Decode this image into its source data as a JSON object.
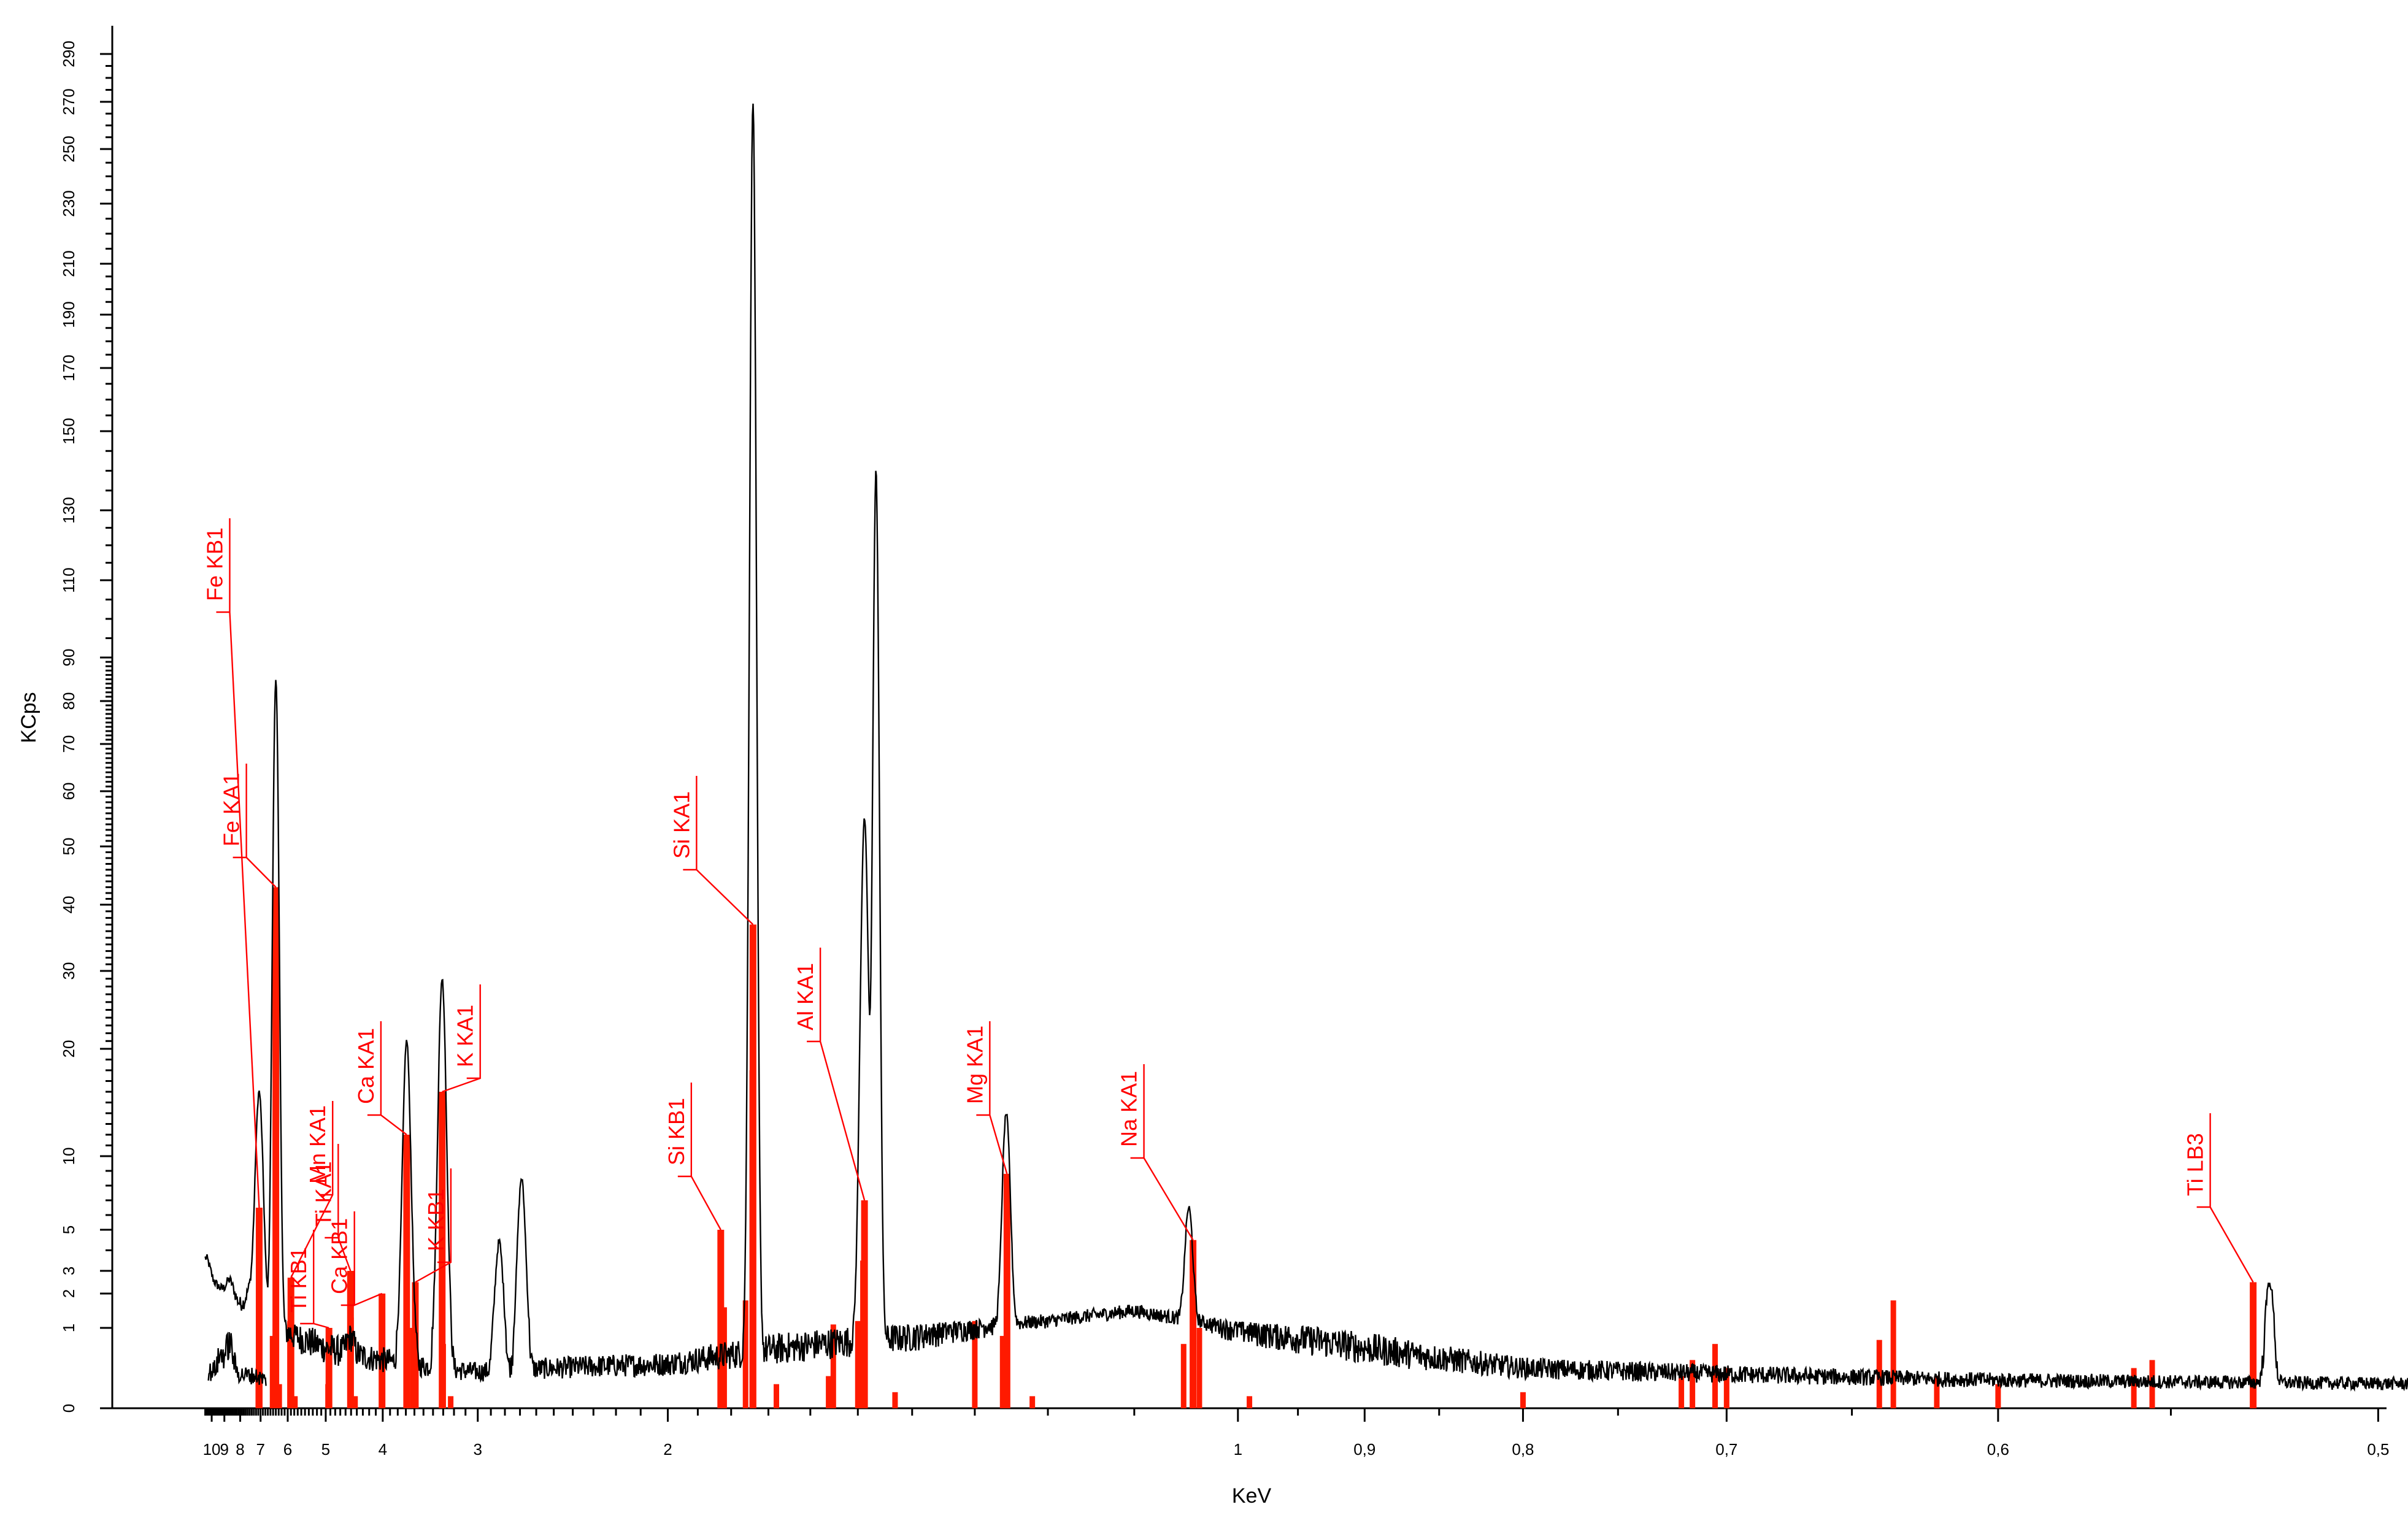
{
  "chart_data": {
    "type": "line",
    "xlabel": "KeV",
    "ylabel": "KCps",
    "x_axis_reversed": true,
    "x_scale": "reciprocal",
    "xlim": [
      10.6,
      0.48
    ],
    "y_scale": "compressed (non-linear)",
    "ylim": [
      0,
      300
    ],
    "grid": false,
    "x_ticks": [
      {
        "value": 10,
        "label": "10"
      },
      {
        "value": 9,
        "label": "9"
      },
      {
        "value": 8,
        "label": "8"
      },
      {
        "value": 7,
        "label": "7"
      },
      {
        "value": 6,
        "label": "6"
      },
      {
        "value": 5,
        "label": "5"
      },
      {
        "value": 4,
        "label": "4"
      },
      {
        "value": 3,
        "label": "3"
      },
      {
        "value": 2,
        "label": "2"
      },
      {
        "value": 1,
        "label": "1"
      },
      {
        "value": 0.9,
        "label": "0,9"
      },
      {
        "value": 0.8,
        "label": "0,8"
      },
      {
        "value": 0.7,
        "label": "0,7"
      },
      {
        "value": 0.6,
        "label": "0,6"
      },
      {
        "value": 0.5,
        "label": "0,5"
      }
    ],
    "y_ticks": [
      "0",
      "1",
      "2",
      "3",
      "5",
      "10",
      "20",
      "30",
      "40",
      "50",
      "60",
      "70",
      "80",
      "90",
      "110",
      "130",
      "150",
      "170",
      "190",
      "210",
      "230",
      "250",
      "270",
      "290"
    ],
    "series": [
      {
        "role": "upper spectrum",
        "baseline": [
          [
            10.6,
            3
          ],
          [
            10,
            2.6
          ],
          [
            9,
            2.1
          ],
          [
            8,
            1.7
          ],
          [
            7.2,
            1.4
          ],
          [
            6.6,
            1.2
          ],
          [
            6,
            0.95
          ],
          [
            5,
            0.75
          ],
          [
            4,
            0.6
          ],
          [
            3,
            0.45
          ],
          [
            2,
            0.55
          ],
          [
            1.4,
            0.9
          ],
          [
            1.2,
            1.2
          ],
          [
            1.1,
            1.5
          ],
          [
            1,
            1.0
          ],
          [
            0.8,
            0.5
          ],
          [
            0.6,
            0.35
          ],
          [
            0.48,
            0.3
          ]
        ],
        "peaks": [
          {
            "x": 10.45,
            "y": 3.6
          },
          {
            "x": 8.63,
            "y": 2.6
          },
          {
            "x": 7.48,
            "y": 2.2
          },
          {
            "x": 7.06,
            "y": 16
          },
          {
            "x": 6.4,
            "y": 85
          },
          {
            "x": 4.51,
            "y": 0.9
          },
          {
            "x": 3.69,
            "y": 21
          },
          {
            "x": 3.31,
            "y": 29
          },
          {
            "x": 2.84,
            "y": 4.4
          },
          {
            "x": 2.69,
            "y": 8.5
          },
          {
            "x": 1.74,
            "y": 270
          },
          {
            "x": 1.487,
            "y": 55
          },
          {
            "x": 1.465,
            "y": 140
          },
          {
            "x": 1.255,
            "y": 14
          },
          {
            "x": 1.045,
            "y": 6.5
          },
          {
            "x": 0.525,
            "y": 2.5
          }
        ]
      },
      {
        "role": "lower spectrum",
        "x_range": [
          10.3,
          6.75
        ],
        "baseline": [
          [
            10.3,
            0.45
          ],
          [
            9,
            0.45
          ],
          [
            8,
            0.42
          ],
          [
            7.2,
            0.4
          ],
          [
            6.75,
            0.35
          ]
        ],
        "peaks": [
          {
            "x": 9.25,
            "y": 0.65
          },
          {
            "x": 8.63,
            "y": 0.8
          }
        ]
      }
    ],
    "line_markers": [
      {
        "element_line": "Fe KB1",
        "x": 7.06,
        "y": 6.5
      },
      {
        "element_line": "Fe KA1",
        "x": 6.4,
        "y": 43
      },
      {
        "element_line": "Mn KA1",
        "x": 5.9,
        "y": 2.7
      },
      {
        "element_line": "Ti KB1",
        "x": 4.93,
        "y": 1.0
      },
      {
        "element_line": "Ti KA1",
        "x": 4.51,
        "y": 3.0
      },
      {
        "element_line": "Ca KB1",
        "x": 4.01,
        "y": 2.0
      },
      {
        "element_line": "Ca KA1",
        "x": 3.69,
        "y": 12
      },
      {
        "element_line": "K  KB1",
        "x": 3.59,
        "y": 2.5
      },
      {
        "element_line": "K  KA1",
        "x": 3.31,
        "y": 16
      },
      {
        "element_line": "Si KB1",
        "x": 1.83,
        "y": 5.0
      },
      {
        "element_line": "Si KA1",
        "x": 1.74,
        "y": 37
      },
      {
        "element_line": "Al KA1",
        "x": 1.487,
        "y": 7.0
      },
      {
        "element_line": "Mg KA1",
        "x": 1.254,
        "y": 8.8
      },
      {
        "element_line": "Na KA1",
        "x": 1.041,
        "y": 4.5
      },
      {
        "element_line": "Ti LB3",
        "x": 0.529,
        "y": 2.5
      }
    ],
    "minor_line_markers": [
      {
        "x": 7.1,
        "y": 0.5
      },
      {
        "x": 6.52,
        "y": 0.9
      },
      {
        "x": 6.38,
        "y": 21
      },
      {
        "x": 6.28,
        "y": 0.3
      },
      {
        "x": 5.93,
        "y": 1.2
      },
      {
        "x": 5.78,
        "y": 0.15
      },
      {
        "x": 4.95,
        "y": 0.3
      },
      {
        "x": 4.5,
        "y": 1.3
      },
      {
        "x": 4.43,
        "y": 0.15
      },
      {
        "x": 3.685,
        "y": 1.5
      },
      {
        "x": 3.62,
        "y": 1.0
      },
      {
        "x": 3.3,
        "y": 0.8
      },
      {
        "x": 3.23,
        "y": 0.15
      },
      {
        "x": 1.82,
        "y": 1.6
      },
      {
        "x": 1.76,
        "y": 1.8
      },
      {
        "x": 1.742,
        "y": 18
      },
      {
        "x": 1.68,
        "y": 0.3
      },
      {
        "x": 1.56,
        "y": 0.4
      },
      {
        "x": 1.55,
        "y": 1.1
      },
      {
        "x": 1.5,
        "y": 1.2
      },
      {
        "x": 1.49,
        "y": 3.5
      },
      {
        "x": 1.43,
        "y": 0.2
      },
      {
        "x": 1.3,
        "y": 1.2
      },
      {
        "x": 1.26,
        "y": 0.9
      },
      {
        "x": 1.22,
        "y": 0.15
      },
      {
        "x": 1.05,
        "y": 0.8
      },
      {
        "x": 1.035,
        "y": 1.0
      },
      {
        "x": 0.99,
        "y": 0.15
      },
      {
        "x": 0.8,
        "y": 0.2
      },
      {
        "x": 0.72,
        "y": 0.4
      },
      {
        "x": 0.715,
        "y": 0.6
      },
      {
        "x": 0.705,
        "y": 0.8
      },
      {
        "x": 0.7,
        "y": 0.5
      },
      {
        "x": 0.64,
        "y": 0.85
      },
      {
        "x": 0.635,
        "y": 1.8
      },
      {
        "x": 0.62,
        "y": 0.4
      },
      {
        "x": 0.6,
        "y": 0.3
      },
      {
        "x": 0.56,
        "y": 0.5
      },
      {
        "x": 0.555,
        "y": 0.6
      }
    ],
    "colors": {
      "spectrum": "#000000",
      "markers": "#ff1a00",
      "labels": "#ff0000"
    }
  }
}
